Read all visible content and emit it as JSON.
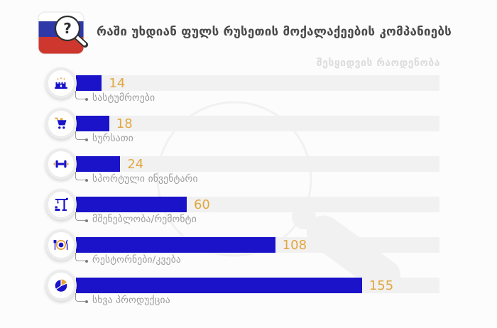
{
  "header": {
    "title": "რაში უხდიან ფულს რუსეთის მოქალაქეების კომპანიებს",
    "logo_question_mark": "?"
  },
  "chart_data": {
    "type": "bar",
    "orientation": "horizontal",
    "title": "რაში უხდიან ფულს რუსეთის მოქალაქეების კომპანიებს",
    "value_axis_label": "შესყიდვის რაოდენობა",
    "categories": [
      "სასტუმროები",
      "სურსათი",
      "სპორტული ინვენტარი",
      "მშენებლობა/რემონტი",
      "რესტორნები/კვება",
      "სხვა პროდუქცია"
    ],
    "values": [
      14,
      18,
      24,
      60,
      108,
      155
    ],
    "xlim": [
      0,
      197
    ],
    "grid": false,
    "legend": false,
    "rows": [
      {
        "label": "სასტუმროები",
        "value": "14",
        "icon": "hotel-icon"
      },
      {
        "label": "სურსათი",
        "value": "18",
        "icon": "shopping-cart-icon"
      },
      {
        "label": "სპორტული ინვენტარი",
        "value": "24",
        "icon": "dumbbell-icon"
      },
      {
        "label": "მშენებლობა/რემონტი",
        "value": "60",
        "icon": "construction-crane-icon"
      },
      {
        "label": "რესტორნები/კვება",
        "value": "108",
        "icon": "restaurant-icon"
      },
      {
        "label": "სხვა პროდუქცია",
        "value": "155",
        "icon": "pie-chart-icon"
      }
    ],
    "colors": {
      "bar": "#1A13CA",
      "track": "#F1F1F1",
      "value_text": "#E2A63F",
      "label_text": "#9C9C9C",
      "title_text": "#4A4A4A",
      "axis_label_text": "#DCDCDC",
      "accent_orange": "#E8A33C",
      "flag_blue": "#2F38A8",
      "flag_red": "#CE372E"
    }
  }
}
